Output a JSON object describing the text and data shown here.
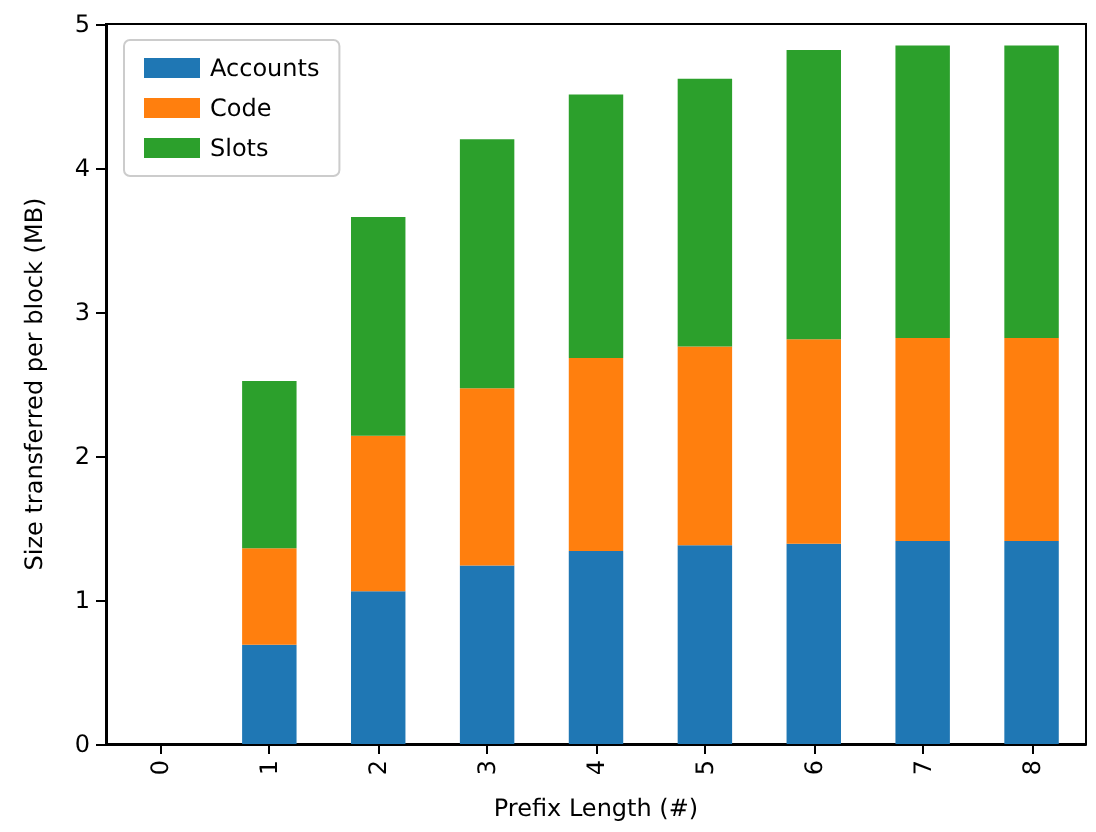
{
  "chart_data": {
    "type": "bar",
    "stacked": true,
    "xlabel": "Prefix Length (#)",
    "ylabel": "Size transferred per block (MB)",
    "categories": [
      "0",
      "1",
      "2",
      "3",
      "4",
      "5",
      "6",
      "7",
      "8"
    ],
    "series": [
      {
        "name": "Accounts",
        "color": "#1f77b4",
        "values": [
          0,
          0.69,
          1.06,
          1.24,
          1.34,
          1.38,
          1.39,
          1.41,
          1.41
        ]
      },
      {
        "name": "Code",
        "color": "#ff7f0e",
        "values": [
          0,
          0.67,
          1.08,
          1.23,
          1.34,
          1.38,
          1.42,
          1.41,
          1.41
        ]
      },
      {
        "name": "Slots",
        "color": "#2ca02c",
        "values": [
          0,
          1.16,
          1.52,
          1.73,
          1.83,
          1.86,
          2.01,
          2.03,
          2.03
        ]
      }
    ],
    "ylim": [
      0,
      5
    ],
    "yticks": [
      0,
      1,
      2,
      3,
      4,
      5
    ],
    "grid": false,
    "legend": "top left"
  }
}
